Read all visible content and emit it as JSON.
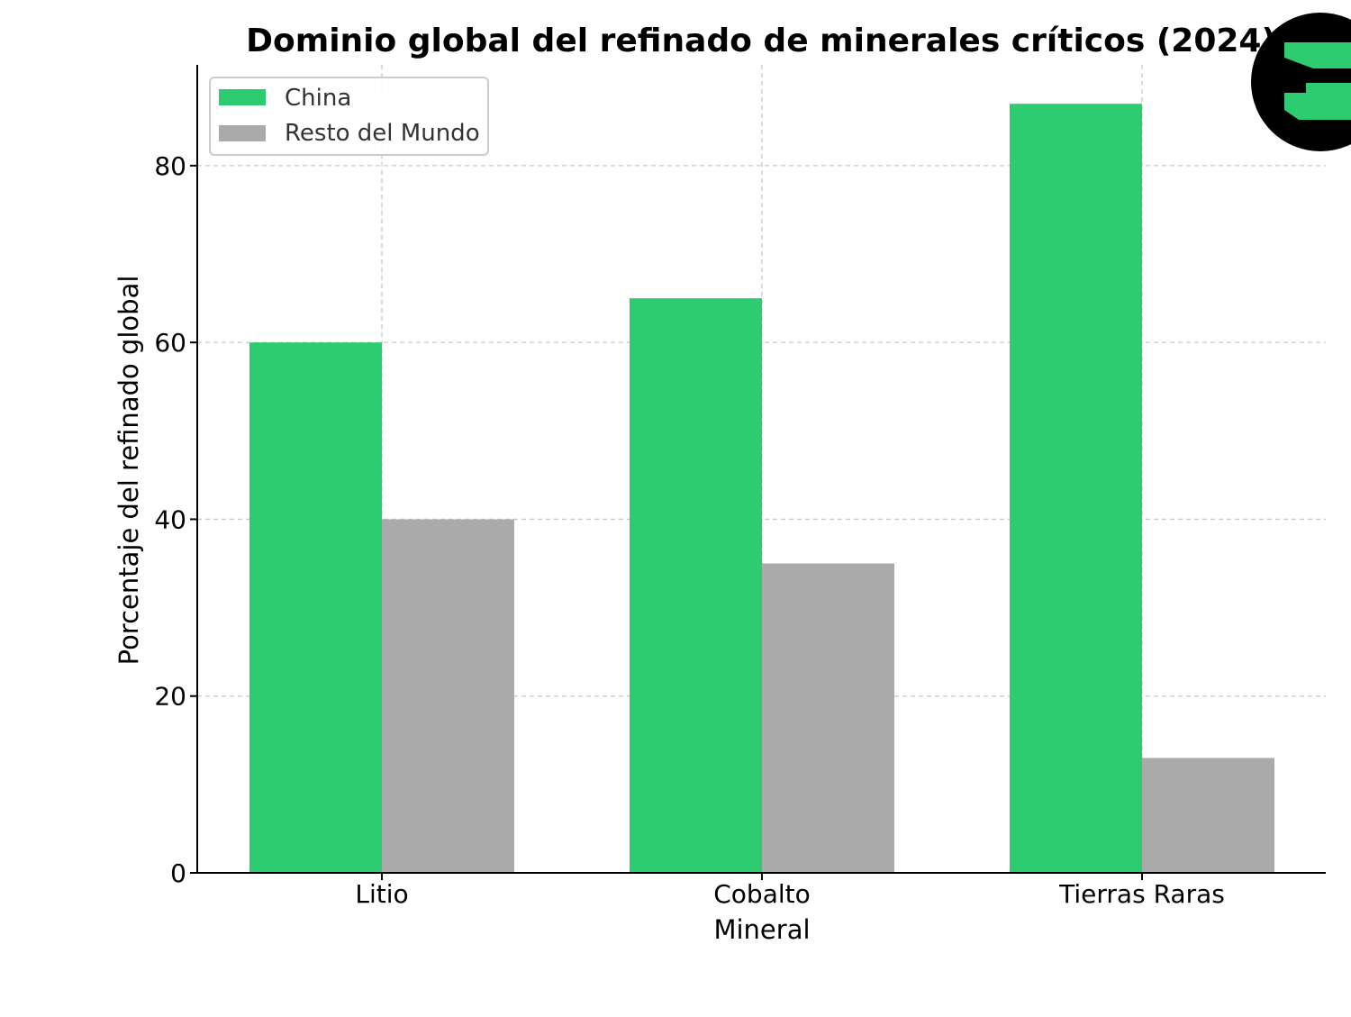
{
  "chart_data": {
    "type": "bar",
    "title": "Dominio global del refinado de minerales críticos (2024)",
    "xlabel": "Mineral",
    "ylabel": "Porcentaje del refinado global",
    "categories": [
      "Litio",
      "Cobalto",
      "Tierras Raras"
    ],
    "series": [
      {
        "name": "China",
        "color": "#2ecc71",
        "values": [
          60,
          65,
          87
        ]
      },
      {
        "name": "Resto del Mundo",
        "color": "#aaaaaa",
        "values": [
          40,
          35,
          13
        ]
      }
    ],
    "ylim": [
      0,
      91.4
    ],
    "yticks": [
      0,
      20,
      40,
      60,
      80
    ],
    "grid": true,
    "legend_position": "top-left"
  },
  "logo": {
    "icon": "brand-logo-icon",
    "background_color": "#000000",
    "accent_color": "#2ecc71"
  }
}
